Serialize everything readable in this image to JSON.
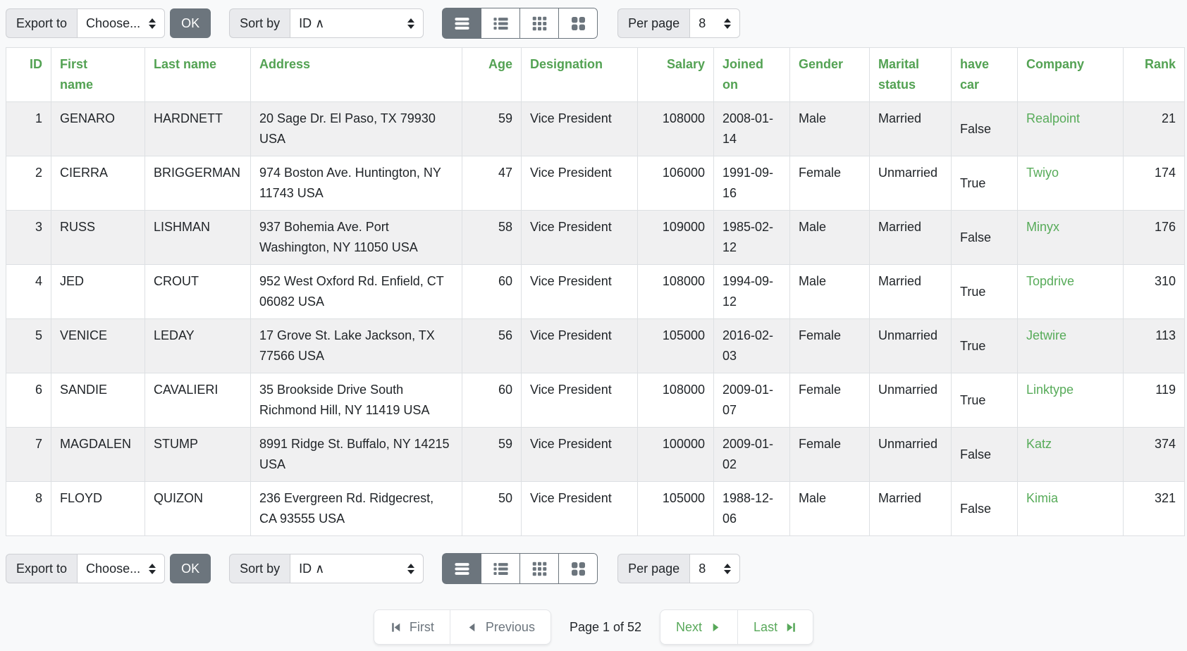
{
  "toolbar": {
    "export_label": "Export to",
    "export_value": "Choose...",
    "ok_label": "OK",
    "sort_label": "Sort by",
    "sort_value": "ID ∧",
    "per_page_label": "Per page",
    "per_page_value": "8",
    "view_modes": [
      {
        "name": "table-view",
        "icon": "hamburger-rows-icon",
        "active": true
      },
      {
        "name": "list-view",
        "icon": "bullet-list-icon",
        "active": false
      },
      {
        "name": "grid-small-view",
        "icon": "grid-3x3-icon",
        "active": false
      },
      {
        "name": "grid-large-view",
        "icon": "grid-2x2-icon",
        "active": false
      }
    ]
  },
  "table": {
    "columns": [
      {
        "key": "id",
        "label": "ID",
        "align": "right"
      },
      {
        "key": "first_name",
        "label": "First name",
        "align": "left"
      },
      {
        "key": "last_name",
        "label": "Last name",
        "align": "left"
      },
      {
        "key": "address",
        "label": "Address",
        "align": "left"
      },
      {
        "key": "age",
        "label": "Age",
        "align": "right"
      },
      {
        "key": "designation",
        "label": "Designation",
        "align": "left"
      },
      {
        "key": "salary",
        "label": "Salary",
        "align": "right"
      },
      {
        "key": "joined_on",
        "label": "Joined on",
        "align": "left"
      },
      {
        "key": "gender",
        "label": "Gender",
        "align": "left"
      },
      {
        "key": "marital_status",
        "label": "Marital status",
        "align": "left"
      },
      {
        "key": "have_car",
        "label": "have car",
        "align": "left"
      },
      {
        "key": "company",
        "label": "Company",
        "align": "left"
      },
      {
        "key": "rank",
        "label": "Rank",
        "align": "right"
      }
    ],
    "rows": [
      [
        "1",
        "GENARO",
        "HARDNETT",
        "20 Sage Dr. El Paso, TX 79930 USA",
        "59",
        "Vice President",
        "108000",
        "2008-01-14",
        "Male",
        "Married",
        "False",
        "Realpoint",
        "21"
      ],
      [
        "2",
        "CIERRA",
        "BRIGGERMAN",
        "974 Boston Ave. Huntington, NY 11743 USA",
        "47",
        "Vice President",
        "106000",
        "1991-09-16",
        "Female",
        "Unmarried",
        "True",
        "Twiyo",
        "174"
      ],
      [
        "3",
        "RUSS",
        "LISHMAN",
        "937 Bohemia Ave. Port Washington, NY 11050 USA",
        "58",
        "Vice President",
        "109000",
        "1985-02-12",
        "Male",
        "Married",
        "False",
        "Minyx",
        "176"
      ],
      [
        "4",
        "JED",
        "CROUT",
        "952 West Oxford Rd. Enfield, CT 06082 USA",
        "60",
        "Vice President",
        "108000",
        "1994-09-12",
        "Male",
        "Married",
        "True",
        "Topdrive",
        "310"
      ],
      [
        "5",
        "VENICE",
        "LEDAY",
        "17 Grove St. Lake Jackson, TX 77566 USA",
        "56",
        "Vice President",
        "105000",
        "2016-02-03",
        "Female",
        "Unmarried",
        "True",
        "Jetwire",
        "113"
      ],
      [
        "6",
        "SANDIE",
        "CAVALIERI",
        "35 Brookside Drive South Richmond Hill, NY 11419 USA",
        "60",
        "Vice President",
        "108000",
        "2009-01-07",
        "Female",
        "Unmarried",
        "True",
        "Linktype",
        "119"
      ],
      [
        "7",
        "MAGDALEN",
        "STUMP",
        "8991 Ridge St. Buffalo, NY 14215 USA",
        "59",
        "Vice President",
        "100000",
        "2009-01-02",
        "Female",
        "Unmarried",
        "False",
        "Katz",
        "374"
      ],
      [
        "8",
        "FLOYD",
        "QUIZON",
        "236 Evergreen Rd. Ridgecrest, CA 93555 USA",
        "50",
        "Vice President",
        "105000",
        "1988-12-06",
        "Male",
        "Married",
        "False",
        "Kimia",
        "321"
      ]
    ]
  },
  "pagination": {
    "first_label": "First",
    "previous_label": "Previous",
    "status": "Page 1 of 52",
    "next_label": "Next",
    "last_label": "Last"
  },
  "colors": {
    "header_text_green": "#53a253",
    "company_link_green": "#57ab59",
    "pagination_green": "#58a85a",
    "button_gray": "#6c757d",
    "stripe_row": "#f0f0f1"
  }
}
